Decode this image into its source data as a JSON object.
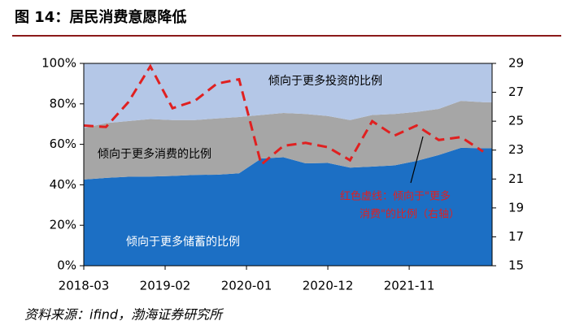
{
  "chart_data": {
    "type": "stacked_area_line",
    "title": "图 14：居民消费意愿降低",
    "source": "资料来源：ifind，渤海证券研究所",
    "x": [
      "2018-03",
      "2018-06",
      "2018-09",
      "2018-12",
      "2019-03",
      "2019-06",
      "2019-09",
      "2019-12",
      "2020-03",
      "2020-06",
      "2020-09",
      "2020-12",
      "2021-03",
      "2021-06",
      "2021-09",
      "2021-12",
      "2022-03",
      "2022-06",
      "2022-09"
    ],
    "xticks": [
      "2018-03",
      "2019-02",
      "2020-01",
      "2020-12",
      "2021-11"
    ],
    "series": [
      {
        "name": "倾向于更多储蓄的比例",
        "color": "#1c6fc4",
        "values": [
          42.6,
          43.4,
          44.0,
          44.1,
          44.4,
          44.9,
          45.0,
          45.7,
          53.0,
          53.6,
          50.6,
          50.8,
          48.5,
          49.0,
          49.6,
          51.8,
          54.7,
          58.3,
          58.1
        ]
      },
      {
        "name": "倾向于更多消费的比例",
        "color": "#a6a6a6",
        "values": [
          25.4,
          27.1,
          27.5,
          28.4,
          27.6,
          27.1,
          27.8,
          27.8,
          21.5,
          21.9,
          24.4,
          23.2,
          23.5,
          25.5,
          25.4,
          24.2,
          22.8,
          23.2,
          22.7
        ]
      },
      {
        "name": "倾向于更多投资的比例",
        "color": "#b4c7e7",
        "values": [
          32.0,
          29.5,
          28.5,
          27.5,
          28.0,
          28.0,
          27.2,
          26.5,
          25.5,
          24.5,
          25.0,
          26.0,
          28.0,
          25.5,
          25.0,
          24.0,
          22.5,
          18.5,
          19.2
        ]
      },
      {
        "color": "#e02020",
        "axis": "y2",
        "dashed": true,
        "values": [
          24.7,
          24.6,
          26.3,
          28.8,
          25.9,
          26.4,
          27.6,
          27.9,
          22.0,
          23.3,
          23.5,
          23.2,
          22.3,
          25.0,
          24.0,
          24.7,
          23.7,
          23.9,
          22.9
        ]
      }
    ],
    "annotation": [
      "红色虚线：倾向于\"更多",
      "消费\"的比例（右轴）"
    ],
    "ylim": [
      0,
      100
    ],
    "yticks": [
      {
        "value": 0,
        "label": "0%"
      },
      {
        "value": 20,
        "label": "20%"
      },
      {
        "value": 40,
        "label": "40%"
      },
      {
        "value": 60,
        "label": "60%"
      },
      {
        "value": 80,
        "label": "80%"
      },
      {
        "value": 100,
        "label": "100%"
      }
    ],
    "y2lim": [
      15,
      29
    ],
    "y2ticks": [
      15,
      17,
      19,
      21,
      23,
      25,
      27,
      29
    ]
  }
}
